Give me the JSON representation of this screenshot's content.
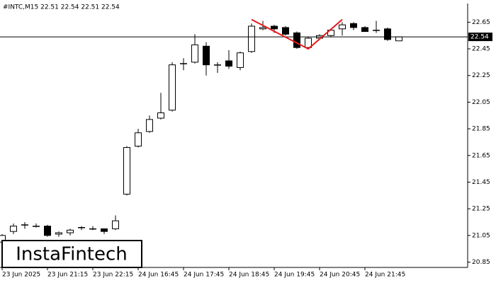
{
  "chart_data": {
    "type": "candlestick",
    "title": "#INTC,M15  22.51 22.54 22.51 22.54",
    "watermark": "InstaFintech",
    "categories": [
      "23 Jun 2025",
      null,
      null,
      null,
      "23 Jun 21:15",
      null,
      null,
      null,
      "23 Jun 22:15",
      null,
      null,
      null,
      "24 Jun 16:45",
      null,
      null,
      null,
      "24 Jun 17:45",
      null,
      null,
      null,
      "24 Jun 18:45",
      null,
      null,
      null,
      "24 Jun 19:45",
      null,
      null,
      null,
      "24 Jun 20:45",
      null,
      null,
      null,
      "24 Jun 21:45",
      null,
      null,
      null
    ],
    "open": [
      21.0,
      21.08,
      21.13,
      21.12,
      21.12,
      21.06,
      21.07,
      21.11,
      21.1,
      21.1,
      21.1,
      21.36,
      21.72,
      21.83,
      21.93,
      21.99,
      22.34,
      22.35,
      22.47,
      22.33,
      22.36,
      22.31,
      22.43,
      22.6,
      22.62,
      22.61,
      22.57,
      22.46,
      22.53,
      22.55,
      22.6,
      22.64,
      22.61,
      22.59,
      22.6,
      22.51
    ],
    "high": [
      21.06,
      21.14,
      21.15,
      21.14,
      21.13,
      21.08,
      21.1,
      21.12,
      21.12,
      21.1,
      21.2,
      21.72,
      21.85,
      21.95,
      22.12,
      22.35,
      22.38,
      22.56,
      22.5,
      22.35,
      22.44,
      22.43,
      22.64,
      22.66,
      22.63,
      22.62,
      22.58,
      22.54,
      22.56,
      22.6,
      22.65,
      22.65,
      22.62,
      22.66,
      22.61,
      22.54
    ],
    "low": [
      20.98,
      21.06,
      21.1,
      21.11,
      21.04,
      21.04,
      21.05,
      21.09,
      21.09,
      21.06,
      21.09,
      21.35,
      21.71,
      21.82,
      21.92,
      21.98,
      22.29,
      22.34,
      22.25,
      22.27,
      22.3,
      22.29,
      22.42,
      22.59,
      22.57,
      22.55,
      22.45,
      22.45,
      22.52,
      22.54,
      22.55,
      22.59,
      22.58,
      22.57,
      22.51,
      22.51
    ],
    "close": [
      21.05,
      21.12,
      21.13,
      21.12,
      21.05,
      21.07,
      21.09,
      21.11,
      21.1,
      21.08,
      21.16,
      21.71,
      21.82,
      21.92,
      21.97,
      22.33,
      22.34,
      22.48,
      22.33,
      22.33,
      22.32,
      22.42,
      22.62,
      22.61,
      22.6,
      22.56,
      22.46,
      22.53,
      22.55,
      22.59,
      22.63,
      22.61,
      22.58,
      22.59,
      22.52,
      22.54
    ],
    "up_color": "#ffffff",
    "down_color": "#000000",
    "edge_color": "#000000",
    "current_price": 22.54,
    "pattern": {
      "color": "#e8191c",
      "index": [
        22,
        27,
        30
      ],
      "values": [
        22.67,
        22.45,
        22.67
      ]
    },
    "ylim": [
      20.81,
      22.79
    ],
    "yticks": [
      22.65,
      22.45,
      22.25,
      22.05,
      21.85,
      21.65,
      21.45,
      21.25,
      21.05,
      20.85
    ]
  }
}
